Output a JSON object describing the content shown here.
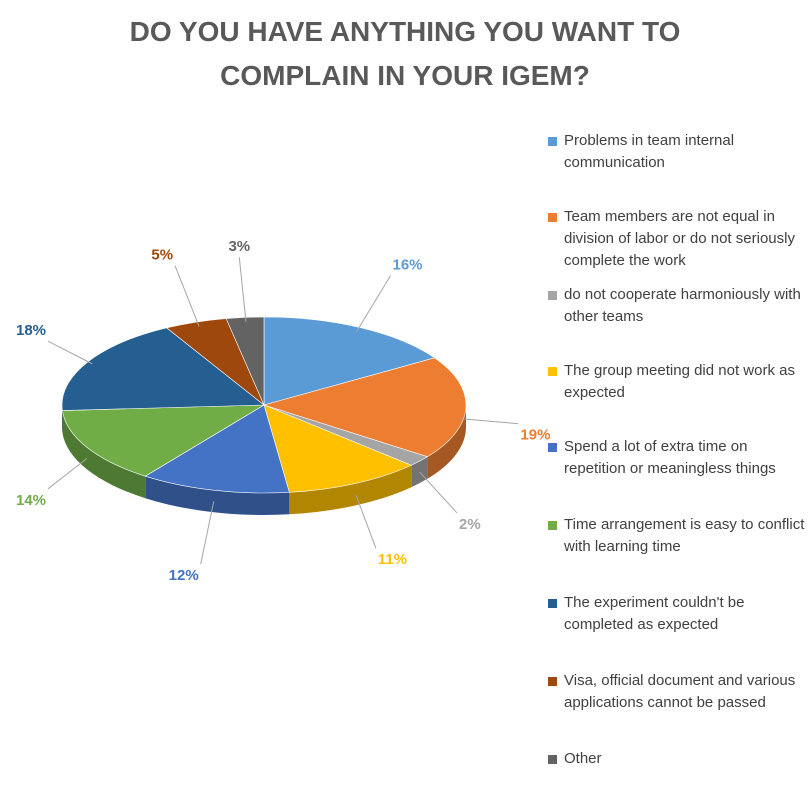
{
  "chart_data": {
    "type": "pie",
    "title_lines": [
      "DO YOU HAVE ANYTHING YOU WANT TO",
      "COMPLAIN IN YOUR IGEM?"
    ],
    "slices": [
      {
        "label": "Problems in team internal communication",
        "value": 16,
        "value_label": "16%",
        "color": "#5B9BD5"
      },
      {
        "label": "Team members are not equal in division of labor or do not seriously complete the work",
        "value": 19,
        "value_label": "19%",
        "color": "#ED7D31"
      },
      {
        "label": "do not cooperate harmoniously with other teams",
        "value": 2,
        "value_label": "2%",
        "color": "#A5A5A5"
      },
      {
        "label": "The group meeting did not work as expected",
        "value": 11,
        "value_label": "11%",
        "color": "#FFC000"
      },
      {
        "label": "Spend a lot of extra time on repetition or meaningless things",
        "value": 12,
        "value_label": "12%",
        "color": "#4472C4"
      },
      {
        "label": "Time arrangement is easy to conflict with learning time",
        "value": 14,
        "value_label": "14%",
        "color": "#70AD47"
      },
      {
        "label": "The experiment couldn't be completed as expected",
        "value": 18,
        "value_label": "18%",
        "color": "#255E91"
      },
      {
        "label": "Visa, official document and various applications cannot be passed",
        "value": 5,
        "value_label": "5%",
        "color": "#9E480E"
      },
      {
        "label": "Other",
        "value": 3,
        "value_label": "3%",
        "color": "#636363"
      }
    ],
    "legend_position": "right"
  }
}
